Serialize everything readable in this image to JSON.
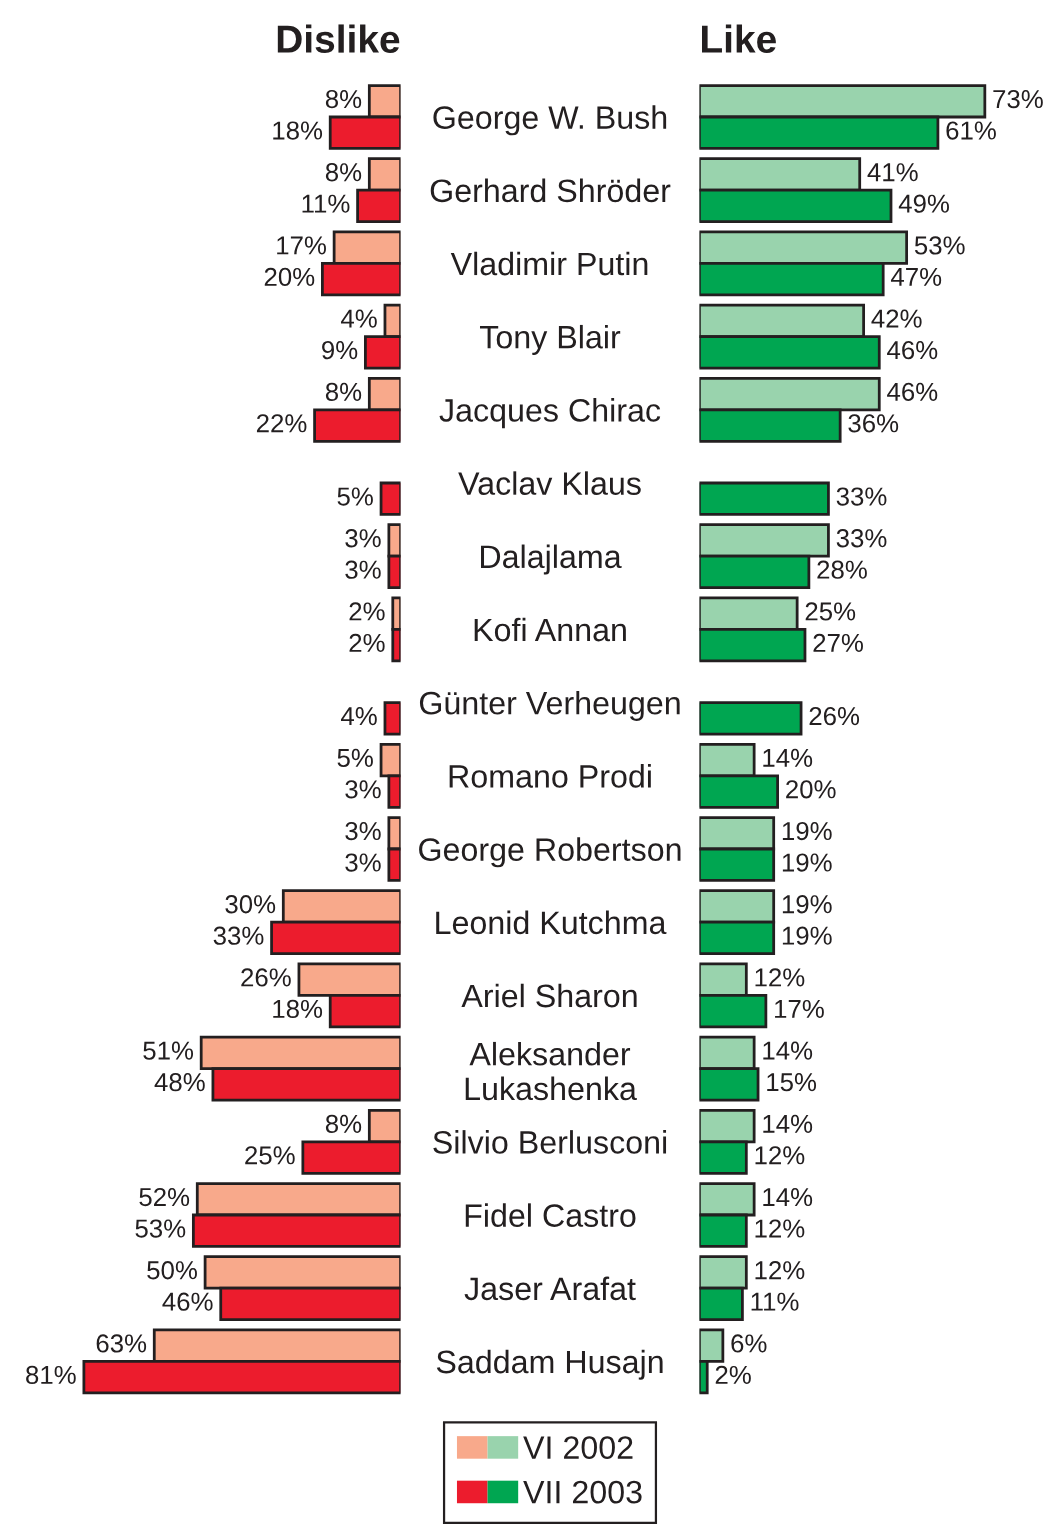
{
  "chart_data": [
    {
      "type": "bar",
      "orientation": "horizontal",
      "title": "Dislike",
      "categories": [
        "George W. Bush",
        "Gerhard Shröder",
        "Vladimir Putin",
        "Tony Blair",
        "Jacques Chirac",
        "Vaclav Klaus",
        "Dalajlama",
        "Kofi Annan",
        "Günter Verheugen",
        "Romano Prodi",
        "George Robertson",
        "Leonid Kutchma",
        "Ariel Sharon",
        "Aleksander\nLukashenka",
        "Silvio Berlusconi",
        "Fidel Castro",
        "Jaser Arafat",
        "Saddam Husajn"
      ],
      "series": [
        {
          "name": "VI 2002",
          "color": "#f8a98b",
          "values": [
            8,
            8,
            17,
            4,
            8,
            null,
            3,
            2,
            null,
            5,
            3,
            30,
            26,
            51,
            8,
            52,
            50,
            63
          ],
          "value_labels": [
            "8%",
            "8%",
            "17%",
            "4%",
            "8%",
            null,
            "3%",
            "2%",
            null,
            "5%",
            "3%",
            "30%",
            "26%",
            "51%",
            "8%",
            "52%",
            "50%",
            "63%"
          ]
        },
        {
          "name": "VII 2003",
          "color": "#ec1c2d",
          "values": [
            18,
            11,
            20,
            9,
            22,
            5,
            3,
            2,
            4,
            3,
            3,
            33,
            18,
            48,
            25,
            53,
            46,
            81
          ],
          "value_labels": [
            "18%",
            "11%",
            "20%",
            "9%",
            "22%",
            "5%",
            "3%",
            "2%",
            "4%",
            "3%",
            "3%",
            "33%",
            "18%",
            "48%",
            "25%",
            "53%",
            "46%",
            "81%"
          ]
        }
      ],
      "tick_labels": "y",
      "legend": "bottom"
    },
    {
      "type": "bar",
      "orientation": "horizontal",
      "title": "Like",
      "categories": [
        "George W. Bush",
        "Gerhard Shröder",
        "Vladimir Putin",
        "Tony Blair",
        "Jacques Chirac",
        "Vaclav Klaus",
        "Dalajlama",
        "Kofi Annan",
        "Günter Verheugen",
        "Romano Prodi",
        "George Robertson",
        "Leonid Kutchma",
        "Ariel Sharon",
        "Aleksander\nLukashenka",
        "Silvio Berlusconi",
        "Fidel Castro",
        "Jaser Arafat",
        "Saddam Husajn"
      ],
      "series": [
        {
          "name": "VI 2002",
          "color": "#99d3ad",
          "values": [
            73,
            41,
            53,
            42,
            46,
            null,
            33,
            25,
            null,
            14,
            19,
            19,
            12,
            14,
            14,
            14,
            12,
            6
          ],
          "value_labels": [
            "73%",
            "41%",
            "53%",
            "42%",
            "46%",
            null,
            "33%",
            "25%",
            null,
            "14%",
            "19%",
            "19%",
            "12%",
            "14%",
            "14%",
            "14%",
            "12%",
            "6%"
          ]
        },
        {
          "name": "VII 2003",
          "color": "#00a651",
          "values": [
            61,
            49,
            47,
            46,
            36,
            33,
            28,
            27,
            26,
            20,
            19,
            19,
            17,
            15,
            12,
            12,
            11,
            2
          ],
          "value_labels": [
            "61%",
            "49%",
            "47%",
            "46%",
            "36%",
            "33%",
            "28%",
            "27%",
            "26%",
            "20%",
            "19%",
            "19%",
            "17%",
            "15%",
            "12%",
            "12%",
            "11%",
            "2%"
          ]
        }
      ],
      "tick_labels": false,
      "legend": "bottom"
    }
  ]
}
